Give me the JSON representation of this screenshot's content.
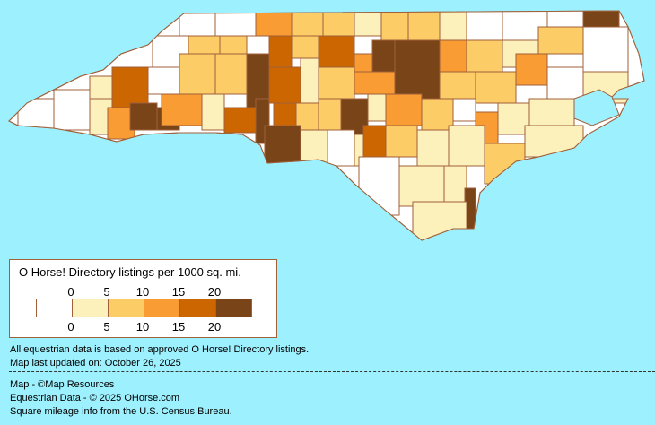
{
  "colors": {
    "background": "#9df0fd",
    "border": "#a0603a",
    "levels": [
      "#ffffff",
      "#fdf1bb",
      "#fccc66",
      "#f99c33",
      "#cc6600",
      "#7a4419"
    ]
  },
  "map": {
    "region": "North Carolina counties",
    "county_levels": [
      0,
      0,
      3,
      2,
      2,
      1,
      2,
      2,
      1,
      0,
      0,
      0,
      5,
      0,
      2,
      2,
      5,
      4,
      2,
      4,
      5,
      5,
      3,
      2,
      1,
      2,
      0,
      1,
      4,
      0,
      2,
      2,
      4,
      1,
      2,
      3,
      2,
      2,
      3,
      0,
      1,
      0,
      0,
      1,
      3,
      5,
      5,
      3,
      1,
      4,
      5,
      4,
      2,
      2,
      5,
      1,
      3,
      2,
      0,
      3,
      1,
      1,
      5,
      1,
      0,
      1,
      4,
      2,
      1,
      1,
      2,
      1,
      0,
      1,
      1,
      5,
      1,
      3
    ]
  },
  "legend": {
    "title": "O Horse! Directory listings per 1000 sq. mi.",
    "top_ticks": [
      "0",
      "5",
      "10",
      "15",
      "20"
    ],
    "bottom_ticks": [
      "0",
      "5",
      "10",
      "15",
      "20"
    ]
  },
  "notes": {
    "line1": "All equestrian data is based on approved O Horse! Directory listings.",
    "line2": "Map last updated on: October 26, 2025"
  },
  "credits": {
    "line1": "Map - ©Map Resources",
    "line2": "Equestrian Data - © 2025 OHorse.com",
    "line3": "Square mileage info from the U.S. Census Bureau."
  }
}
